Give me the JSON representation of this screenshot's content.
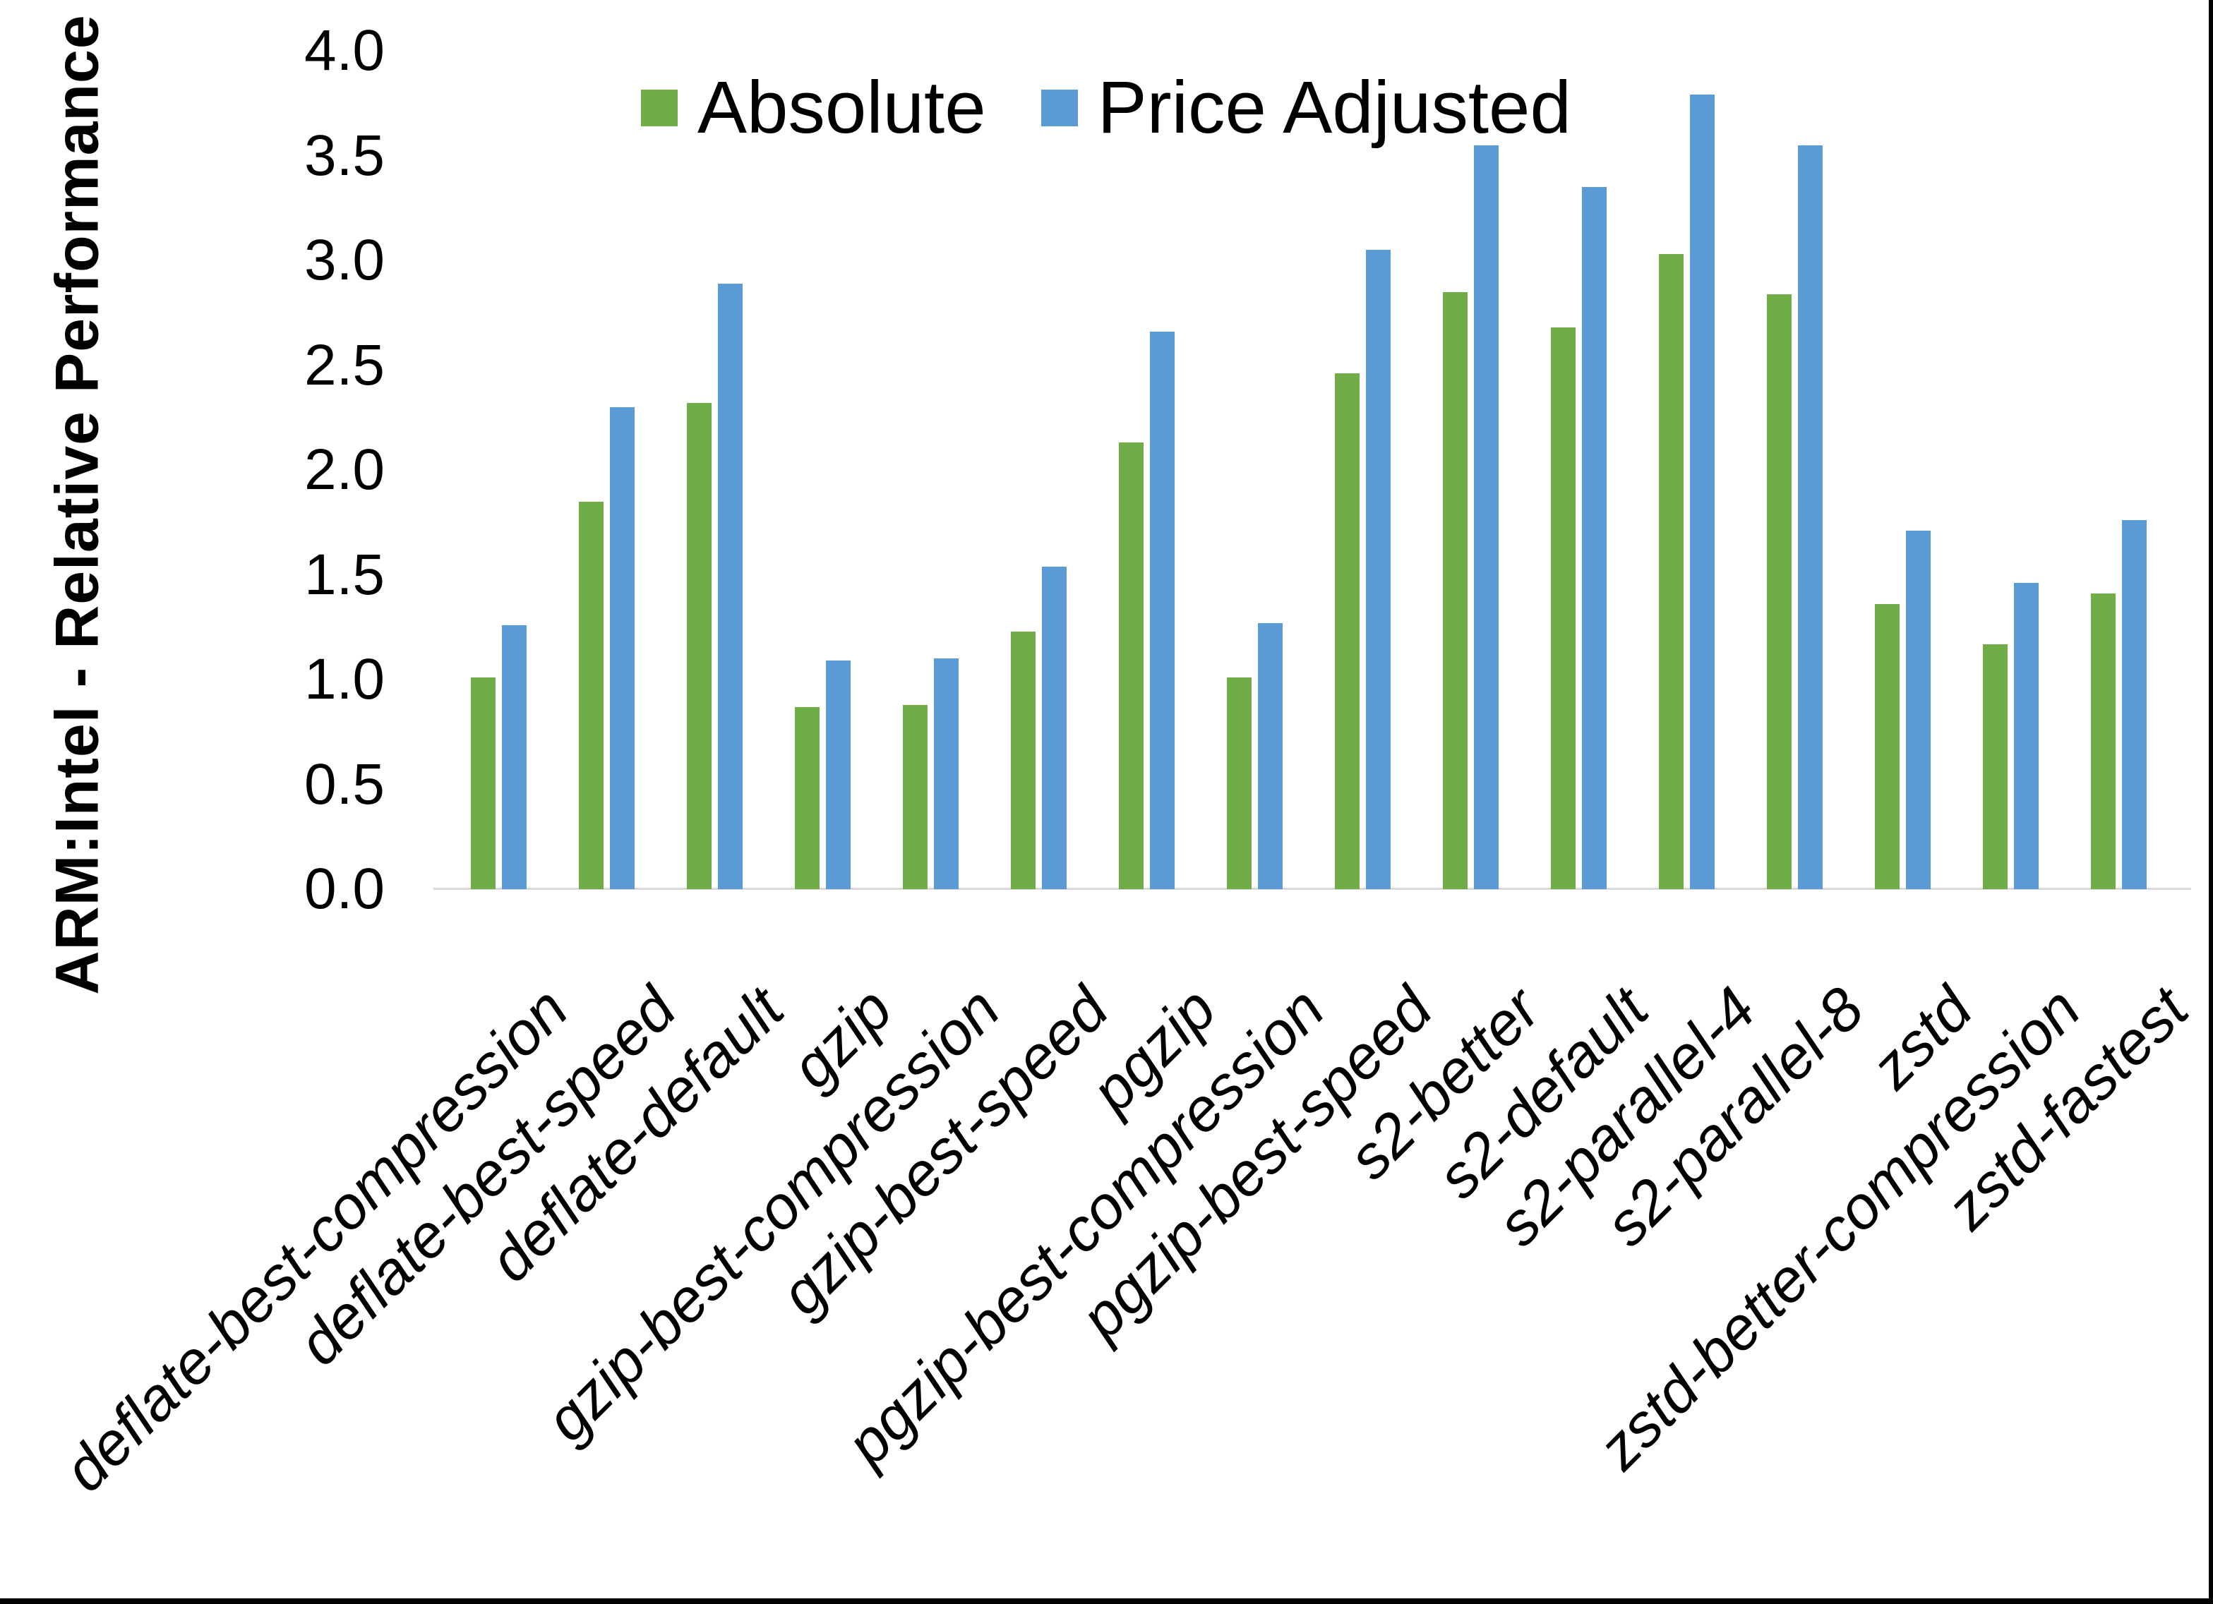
{
  "chart_data": {
    "type": "bar",
    "title": "",
    "xlabel": "",
    "ylabel": "ARM:Intel - Relative Performance",
    "ylim": [
      0.0,
      4.0
    ],
    "ytick_step": 0.5,
    "grid": false,
    "legend_position": "top-center",
    "background_color": "#FFFFFF",
    "axis_line_color": "#D9D9D9",
    "text_color": "#000000",
    "frame_border_color": "#000000",
    "categories": [
      "deflate-best-compression",
      "deflate-best-speed",
      "deflate-default",
      "gzip",
      "gzip-best-compression",
      "gzip-best-speed",
      "pgzip",
      "pgzip-best-compression",
      "pgzip-best-speed",
      "s2-better",
      "s2-default",
      "s2-parallel-4",
      "s2-parallel-8",
      "zstd",
      "zstd-better-compression",
      "zstd-fastest"
    ],
    "series": [
      {
        "name": "Absolute",
        "color": "#70AD47",
        "values": [
          1.01,
          1.85,
          2.32,
          0.87,
          0.88,
          1.23,
          2.13,
          1.01,
          2.46,
          2.85,
          2.68,
          3.03,
          2.84,
          1.36,
          1.17,
          1.41
        ]
      },
      {
        "name": "Price Adjusted",
        "color": "#5B9BD5",
        "values": [
          1.26,
          2.3,
          2.89,
          1.09,
          1.1,
          1.54,
          2.66,
          1.27,
          3.05,
          3.55,
          3.35,
          3.79,
          3.55,
          1.71,
          1.46,
          1.76
        ]
      }
    ]
  }
}
